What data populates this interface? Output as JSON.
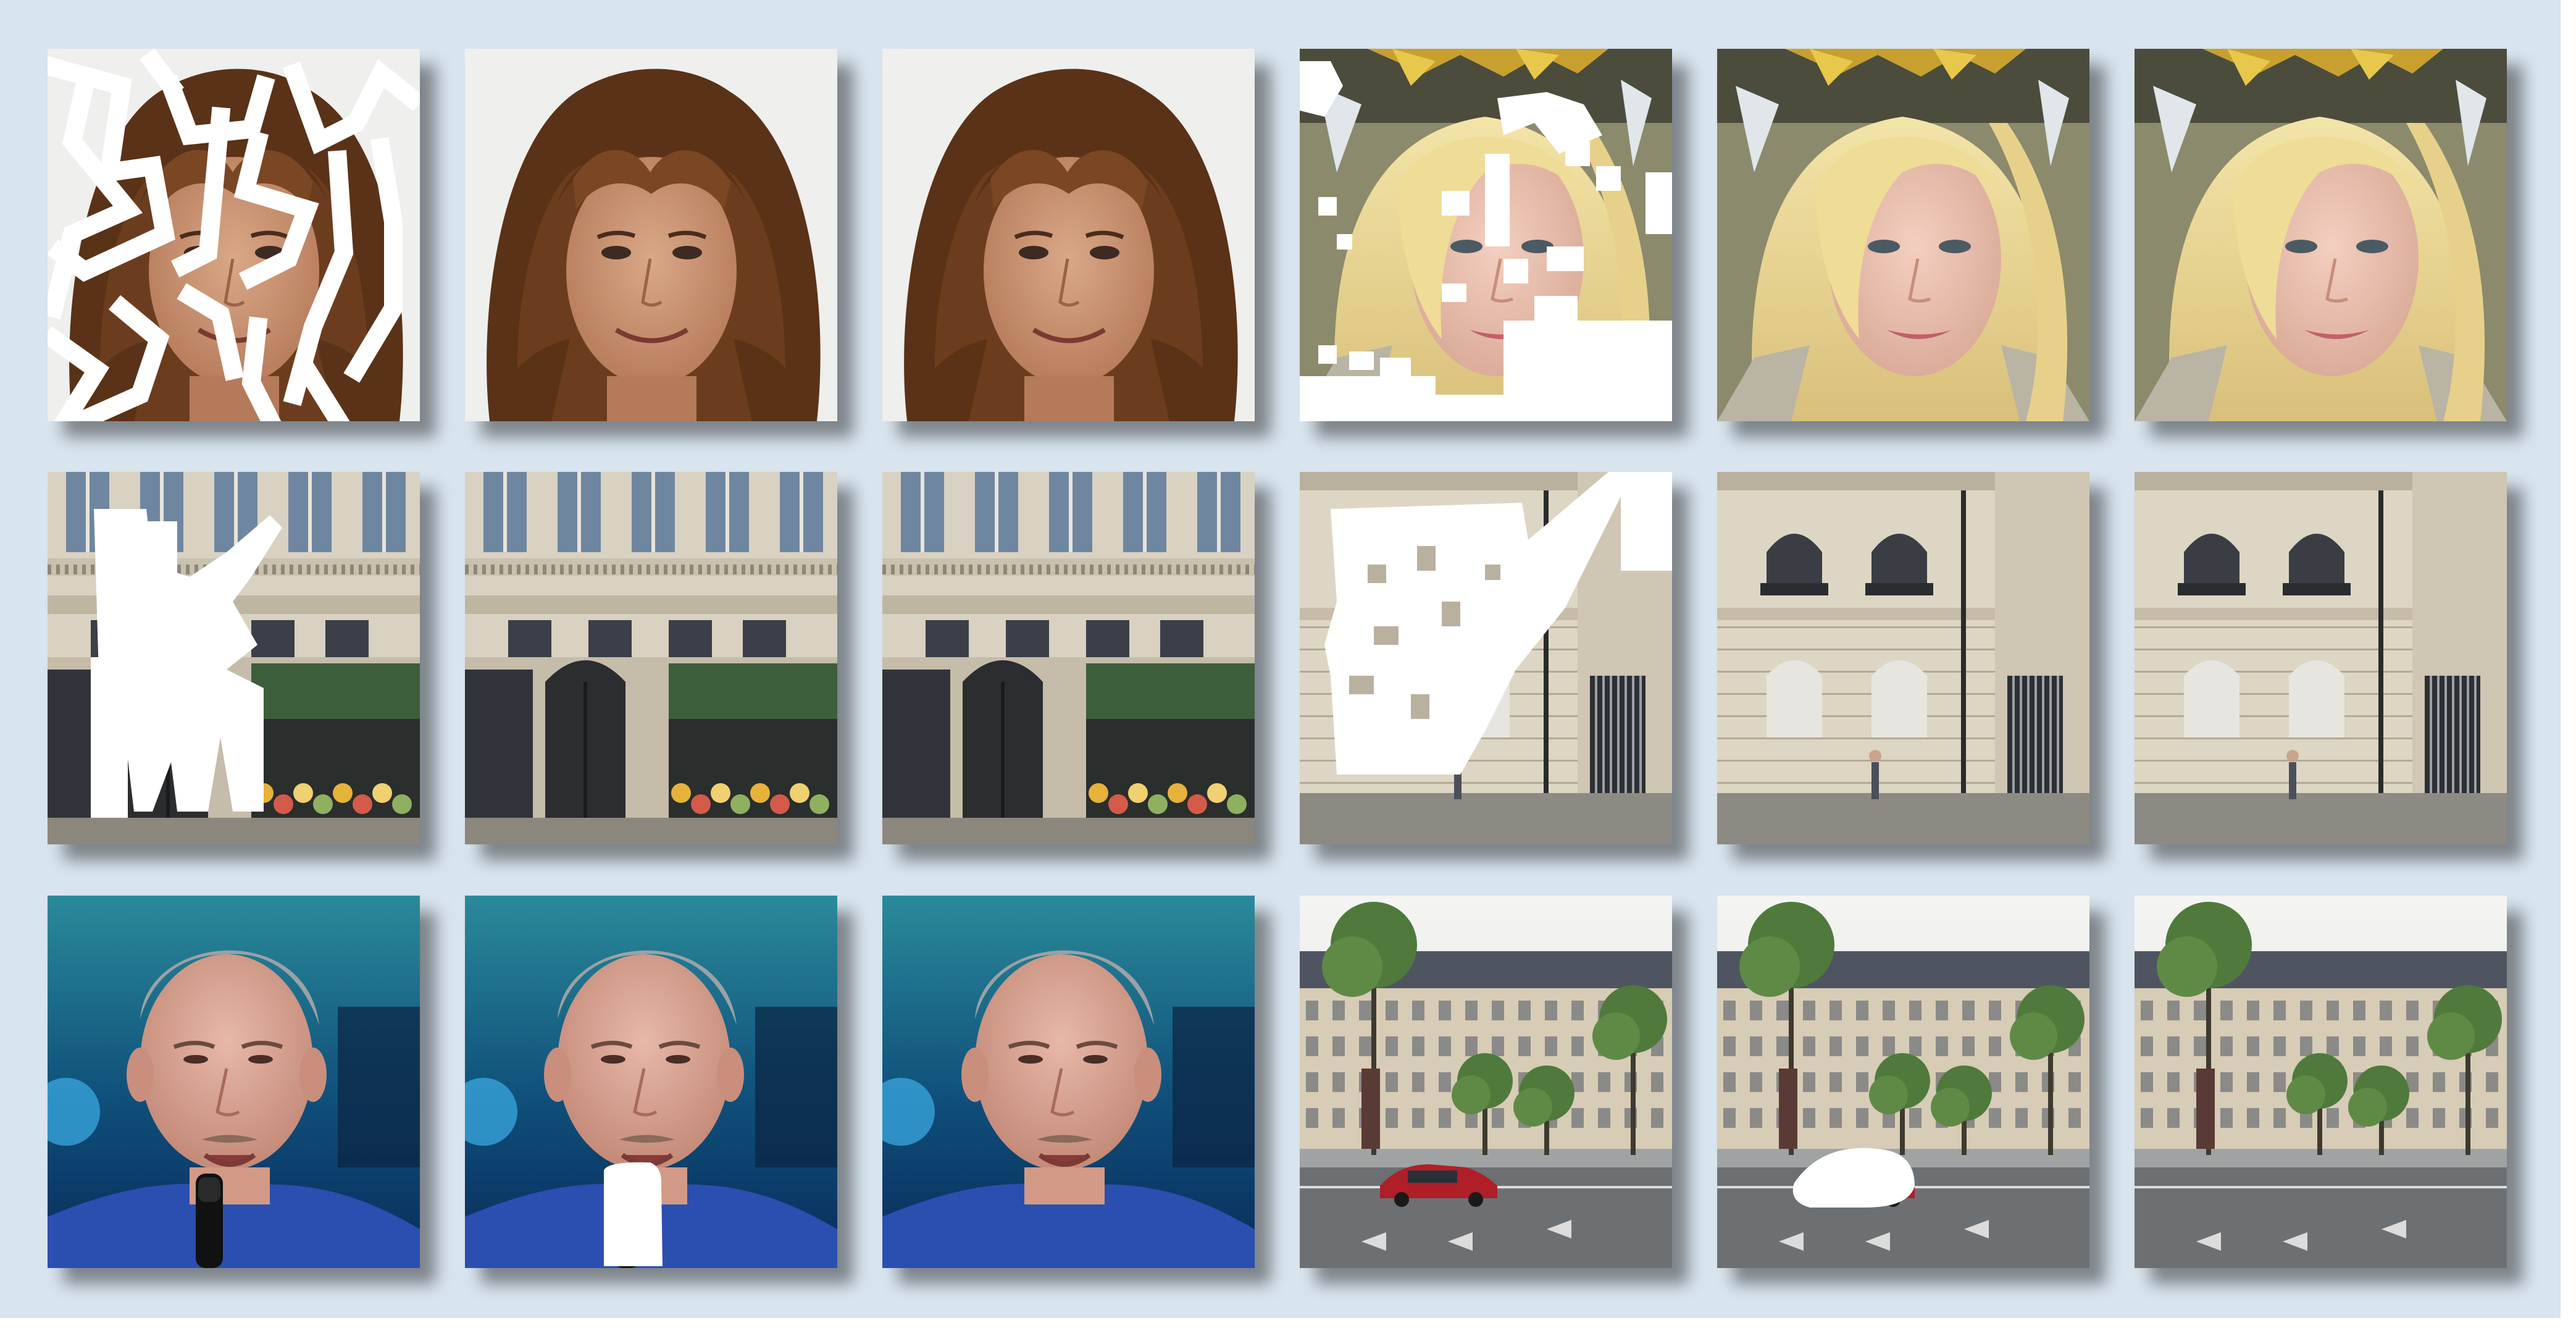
{
  "figure": {
    "background_color": "#d8e4ee",
    "rows": [
      {
        "tiles": [
          {
            "scene": "face-brown-curly",
            "state": "masked"
          },
          {
            "scene": "face-brown-curly",
            "state": "result"
          },
          {
            "scene": "face-brown-curly",
            "state": "original"
          },
          {
            "scene": "face-blonde",
            "state": "masked"
          },
          {
            "scene": "face-blonde",
            "state": "result"
          },
          {
            "scene": "face-blonde",
            "state": "original"
          }
        ]
      },
      {
        "tiles": [
          {
            "scene": "facade-shop",
            "state": "masked"
          },
          {
            "scene": "facade-shop",
            "state": "result"
          },
          {
            "scene": "facade-shop",
            "state": "original"
          },
          {
            "scene": "facade-windows",
            "state": "masked"
          },
          {
            "scene": "facade-windows",
            "state": "result"
          },
          {
            "scene": "facade-windows",
            "state": "original"
          }
        ]
      },
      {
        "tiles": [
          {
            "scene": "man-microphone",
            "state": "original"
          },
          {
            "scene": "man-microphone",
            "state": "masked"
          },
          {
            "scene": "man-microphone",
            "state": "result"
          },
          {
            "scene": "street-car",
            "state": "original"
          },
          {
            "scene": "street-car",
            "state": "masked"
          },
          {
            "scene": "street-car",
            "state": "result"
          }
        ]
      }
    ]
  }
}
